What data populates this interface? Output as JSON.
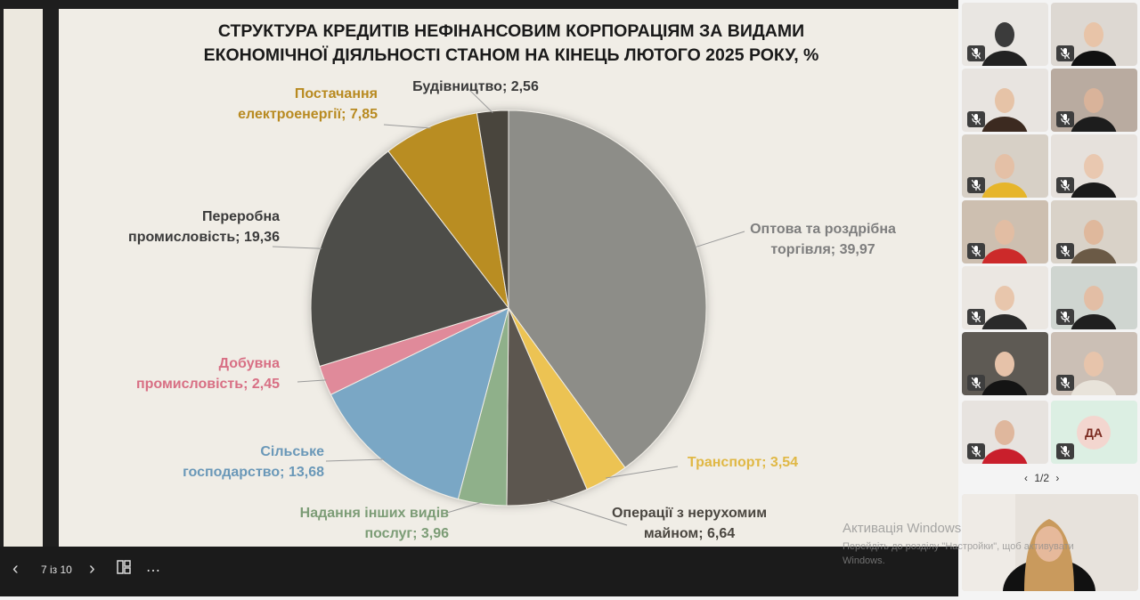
{
  "slide": {
    "title_line1": "СТРУКТУРА КРЕДИТІВ НЕФІНАНСОВИМ КОРПОРАЦІЯМ ЗА ВИДАМИ",
    "title_line2": "ЕКОНОМІЧНОЇ ДІЯЛЬНОСТІ СТАНОМ НА КІНЕЦЬ ЛЮТОГО 2025 РОКУ, %"
  },
  "chart_data": {
    "type": "pie",
    "title": "СТРУКТУРА КРЕДИТІВ НЕФІНАНСОВИМ КОРПОРАЦІЯМ ЗА ВИДАМИ ЕКОНОМІЧНОЇ ДІЯЛЬНОСТІ СТАНОМ НА КІНЕЦЬ ЛЮТОГО 2025 РОКУ, %",
    "slices": [
      {
        "label_line1": "Оптова та роздрібна",
        "label_line2": "торгівля; 39,97",
        "value": 39.97,
        "color": "#8d8d88",
        "label_color": "#7e7e7e"
      },
      {
        "label_line1": "Транспорт; 3,54",
        "label_line2": "",
        "value": 3.54,
        "color": "#ecc352",
        "label_color": "#e0b845"
      },
      {
        "label_line1": "Операції з нерухомим",
        "label_line2": "майном; 6,64",
        "value": 6.64,
        "color": "#5c574f",
        "label_color": "#4a4640"
      },
      {
        "label_line1": "Надання інших видів",
        "label_line2": "послуг; 3,96",
        "value": 3.96,
        "color": "#8fb08a",
        "label_color": "#7c9c76"
      },
      {
        "label_line1": "Сільське",
        "label_line2": "господарство; 13,68",
        "value": 13.68,
        "color": "#7aa7c5",
        "label_color": "#6a98b8"
      },
      {
        "label_line1": "Добувна",
        "label_line2": "промисловість; 2,45",
        "value": 2.45,
        "color": "#e08a9a",
        "label_color": "#d86f84"
      },
      {
        "label_line1": "Переробна",
        "label_line2": "промисловість; 19,36",
        "value": 19.36,
        "color": "#4e4d49",
        "label_color": "#3a3a3a"
      },
      {
        "label_line1": "Постачання",
        "label_line2": "електроенергії; 7,85",
        "value": 7.85,
        "color": "#b98d22",
        "label_color": "#b88a20"
      },
      {
        "label_line1": "Будівництво; 2,56",
        "label_line2": "",
        "value": 2.56,
        "color": "#4a443c",
        "label_color": "#3a3a3a"
      }
    ]
  },
  "controls": {
    "prev_icon": "chevron-left-icon",
    "page_indicator": "7 із 10",
    "next_icon": "chevron-right-icon",
    "layout_icon": "slides-layout-icon",
    "more_label": "⋯"
  },
  "participants": {
    "initials_tile": "ДА",
    "pager": "1/2",
    "mute_icon": "microphone-muted-icon",
    "colors": {
      "initials_bg": "#dcefe3",
      "initials_ring": "#f3d6cf",
      "initials_text": "#7a2a20"
    }
  },
  "watermark": {
    "line1": "Активація Windows",
    "line2": "Перейдіть до розділу \"Настройки\", щоб активувати Windows."
  }
}
